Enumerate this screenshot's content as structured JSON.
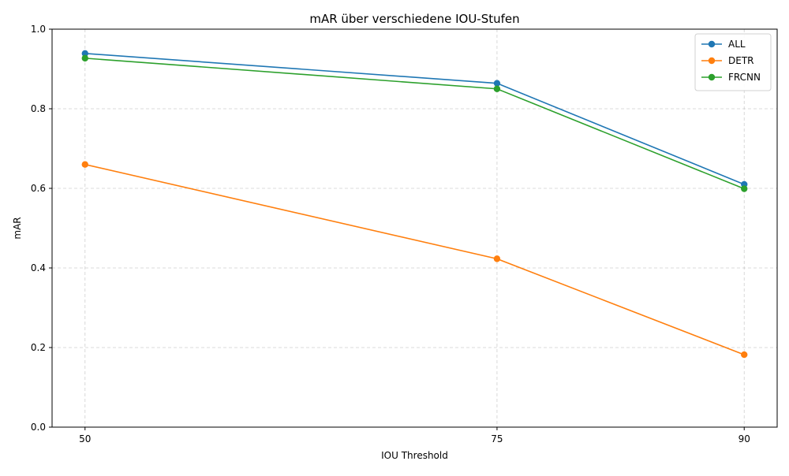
{
  "chart_data": {
    "type": "line",
    "title": "mAR über verschiedene IOU-Stufen",
    "xlabel": "IOU Threshold",
    "ylabel": "mAR",
    "x": [
      50,
      75,
      90
    ],
    "x_tick_labels": [
      "50",
      "75",
      "90"
    ],
    "y_ticks": [
      0.0,
      0.2,
      0.4,
      0.6,
      0.8,
      1.0
    ],
    "y_tick_labels": [
      "0.0",
      "0.2",
      "0.4",
      "0.6",
      "0.8",
      "1.0"
    ],
    "xlim": [
      48,
      92
    ],
    "ylim": [
      0.0,
      1.0
    ],
    "grid": true,
    "legend_position": "top-right",
    "series": [
      {
        "name": "ALL",
        "color": "#1f77b4",
        "values": [
          0.939,
          0.864,
          0.61
        ]
      },
      {
        "name": "DETR",
        "color": "#ff7f0e",
        "values": [
          0.66,
          0.423,
          0.182
        ]
      },
      {
        "name": "FRCNN",
        "color": "#2ca02c",
        "values": [
          0.927,
          0.85,
          0.599
        ]
      }
    ]
  }
}
